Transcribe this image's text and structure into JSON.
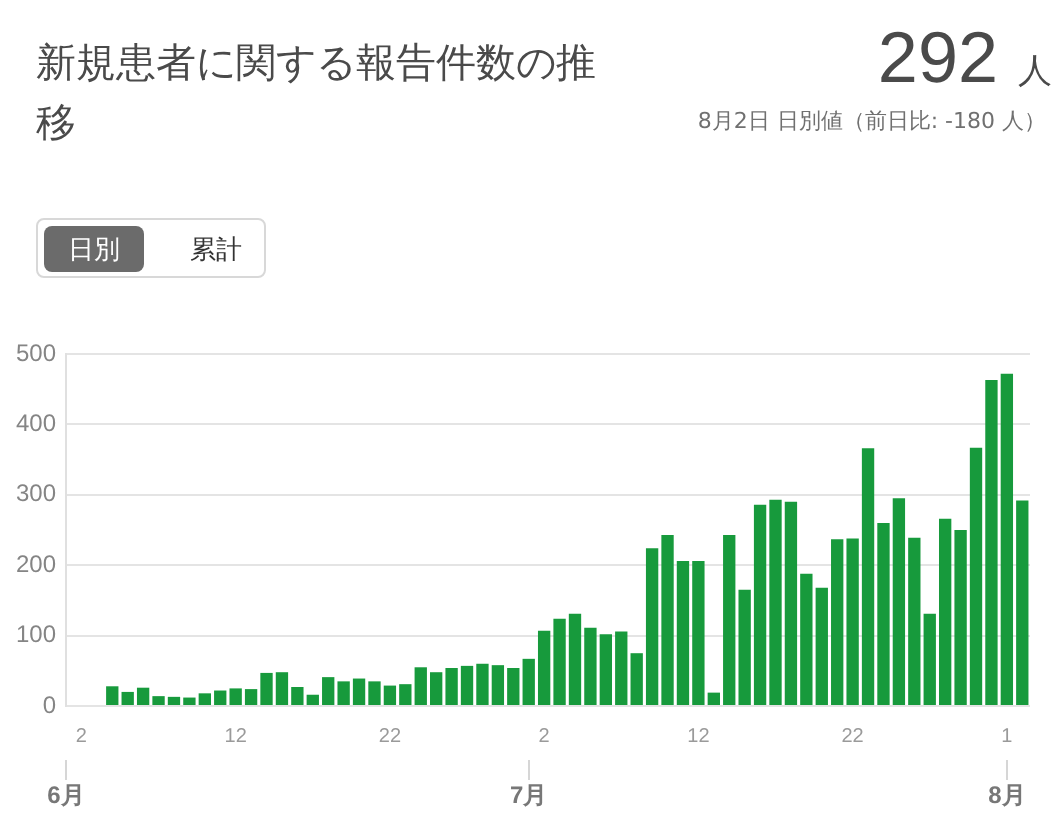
{
  "chart_data": {
    "type": "bar",
    "title": "新規患者に関する報告件数の推移",
    "annotations": [
      "292 人",
      "8月2日 日別値（前日比: -180 人）",
      "日別",
      "累計"
    ],
    "x": [
      "--06-04",
      "--06-05",
      "--06-06",
      "--06-07",
      "--06-08",
      "--06-09",
      "--06-10",
      "--06-11",
      "--06-12",
      "--06-13",
      "--06-14",
      "--06-15",
      "--06-16",
      "--06-17",
      "--06-18",
      "--06-19",
      "--06-20",
      "--06-21",
      "--06-22",
      "--06-23",
      "--06-24",
      "--06-25",
      "--06-26",
      "--06-27",
      "--06-28",
      "--06-29",
      "--06-30",
      "--07-01",
      "--07-02",
      "--07-03",
      "--07-04",
      "--07-05",
      "--07-06",
      "--07-07",
      "--07-08",
      "--07-09",
      "--07-10",
      "--07-11",
      "--07-12",
      "--07-13",
      "--07-14",
      "--07-15",
      "--07-16",
      "--07-17",
      "--07-18",
      "--07-19",
      "--07-20",
      "--07-21",
      "--07-22",
      "--07-23",
      "--07-24",
      "--07-25",
      "--07-26",
      "--07-27",
      "--07-28",
      "--07-29",
      "--07-30",
      "--07-31",
      "--08-01",
      "--08-02"
    ],
    "values": [
      28,
      20,
      26,
      14,
      13,
      12,
      18,
      22,
      25,
      24,
      47,
      48,
      27,
      16,
      41,
      35,
      39,
      35,
      29,
      31,
      55,
      48,
      54,
      57,
      60,
      58,
      54,
      67,
      107,
      124,
      131,
      111,
      102,
      106,
      75,
      224,
      243,
      206,
      206,
      19,
      243,
      165,
      286,
      293,
      290,
      188,
      168,
      237,
      238,
      366,
      260,
      295,
      239,
      131,
      266,
      250,
      367,
      463,
      472,
      292
    ],
    "color": "#179a3c",
    "xlim": [
      "--06-01",
      "--08-02T12:00"
    ],
    "xticks": [
      {
        "value": "--06-02",
        "label": "2"
      },
      {
        "value": "--06-12",
        "label": "12"
      },
      {
        "value": "--06-22",
        "label": "22"
      },
      {
        "value": "--07-02",
        "label": "2"
      },
      {
        "value": "--07-12",
        "label": "12"
      },
      {
        "value": "--07-22",
        "label": "22"
      },
      {
        "value": "--08-01",
        "label": "1"
      }
    ],
    "x2lim": [
      "--06-01",
      "--08-02T12:00"
    ],
    "x2ticks": [
      {
        "value": "--06-01",
        "label": "6月"
      },
      {
        "value": "--07-01",
        "label": "7月"
      },
      {
        "value": "--08-01",
        "label": "8月"
      }
    ],
    "ylim": [
      0,
      500
    ],
    "yticks": [
      0,
      100,
      200,
      300,
      400,
      500
    ],
    "grid": "y"
  }
}
